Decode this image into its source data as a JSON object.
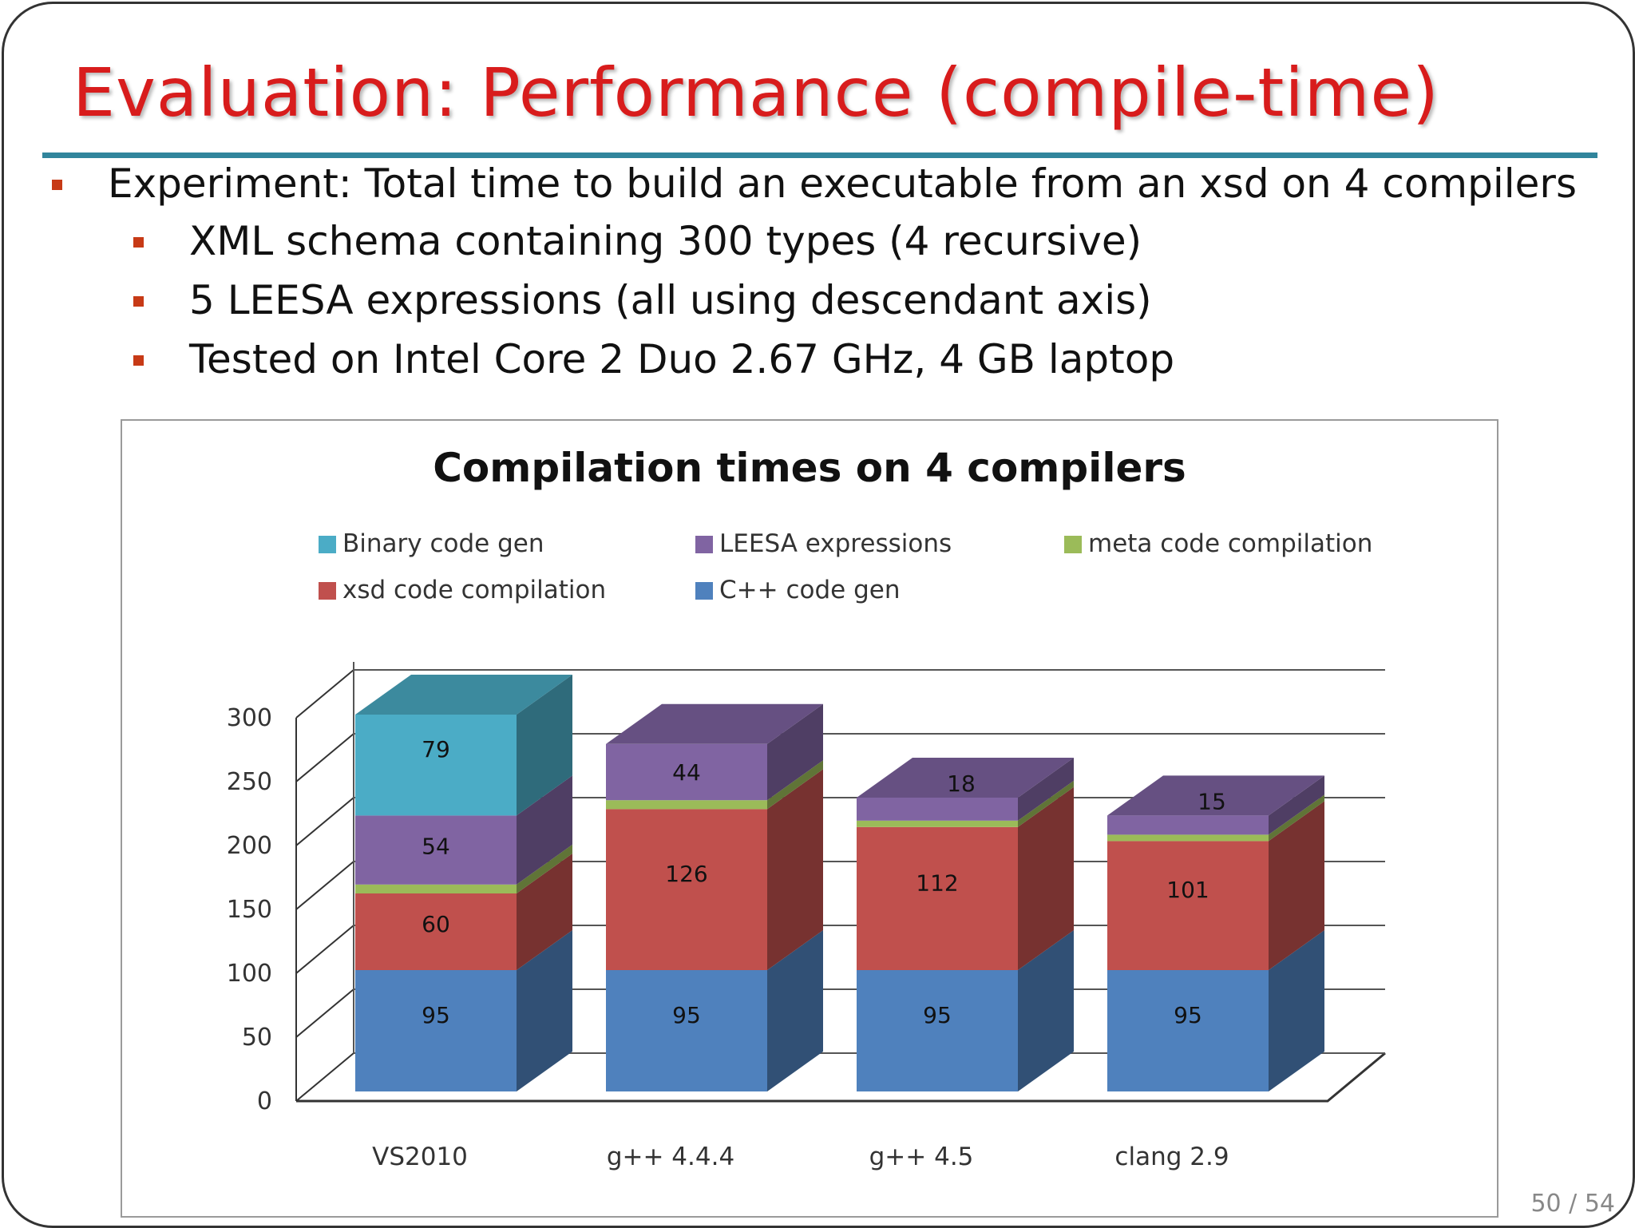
{
  "slide": {
    "title": "Evaluation: Performance (compile-time)",
    "bullets": [
      "Experiment: Total time to build an executable from an xsd on 4 compilers",
      "XML schema containing 300 types (4 recursive)",
      "5 LEESA expressions (all using descendant axis)",
      "Tested on Intel Core 2 Duo 2.67 GHz, 4 GB laptop"
    ],
    "page_number": "50 / 54"
  },
  "colors": {
    "title": "#d81c1c",
    "rule": "#31859c",
    "bullet": "#c73a16"
  },
  "chart_data": {
    "type": "bar",
    "stacked": true,
    "three_d": true,
    "title": "Compilation times on 4 compilers",
    "xlabel": "",
    "ylabel": "",
    "categories": [
      "VS2010",
      "g++ 4.4.4",
      "g++ 4.5",
      "clang 2.9"
    ],
    "ylim": [
      0,
      300
    ],
    "yticks": [
      0,
      50,
      100,
      150,
      200,
      250,
      300
    ],
    "grid": true,
    "legend_position": "top",
    "series": [
      {
        "name": "C++ code gen",
        "color": "#4f81bd",
        "values": [
          95,
          95,
          95,
          95
        ],
        "labels": [
          "95",
          "95",
          "95",
          "95"
        ]
      },
      {
        "name": "xsd code compilation",
        "color": "#c0504d",
        "values": [
          60,
          126,
          112,
          101
        ],
        "labels": [
          "60",
          "126",
          "112",
          "101"
        ]
      },
      {
        "name": "meta code compilation",
        "color": "#9bbb59",
        "values": [
          7,
          7,
          5,
          5
        ],
        "labels": [
          "",
          "",
          "",
          ""
        ]
      },
      {
        "name": "LEESA expressions",
        "color": "#8064a2",
        "values": [
          54,
          44,
          18,
          15
        ],
        "labels": [
          "54",
          "44",
          "18",
          "15"
        ]
      },
      {
        "name": "Binary code gen",
        "color": "#4bacc6",
        "values": [
          79,
          0,
          0,
          0
        ],
        "labels": [
          "79",
          "",
          "",
          ""
        ]
      }
    ],
    "legend_order": [
      "Binary code gen",
      "LEESA expressions",
      "meta code compilation",
      "xsd code compilation",
      "C++ code gen"
    ]
  }
}
